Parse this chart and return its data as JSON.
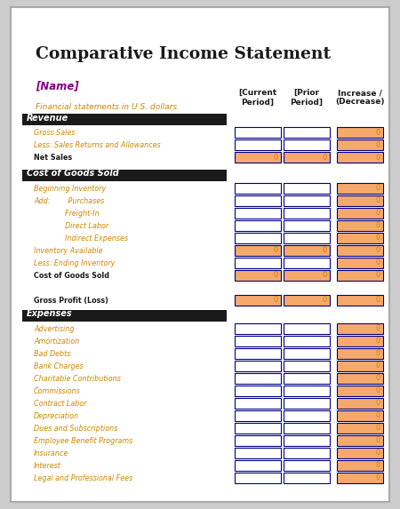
{
  "title": "Comparative Income Statement",
  "name_label": "[Name]",
  "subtitle": "Financial statements in U.S. dollars",
  "col_headers": [
    "[Current\nPeriod]",
    "[Prior\nPeriod]",
    "Increase /\n(Decrease)"
  ],
  "sections": [
    {
      "header": "Revenue",
      "rows": [
        {
          "label": "Gross Sales",
          "indent": 1,
          "type": "input",
          "bold": false
        },
        {
          "label": "Less: Sales Returns and Allowances",
          "indent": 1,
          "type": "input",
          "bold": false
        },
        {
          "label": "Net Sales",
          "indent": 1,
          "type": "total",
          "bold": true
        }
      ]
    },
    {
      "header": "Cost of Goods Sold",
      "rows": [
        {
          "label": "Beginning Inventory",
          "indent": 1,
          "type": "input",
          "bold": false
        },
        {
          "label": "Add:        Purchases",
          "indent": 1,
          "type": "input",
          "bold": false
        },
        {
          "label": "              Freight-In",
          "indent": 1,
          "type": "input",
          "bold": false
        },
        {
          "label": "              Direct Labor",
          "indent": 1,
          "type": "input",
          "bold": false
        },
        {
          "label": "              Indirect Expenses",
          "indent": 1,
          "type": "input",
          "bold": false
        },
        {
          "label": "Inventory Available",
          "indent": 1,
          "type": "subtotal",
          "bold": false
        },
        {
          "label": "Less: Ending Inventory",
          "indent": 1,
          "type": "input",
          "bold": false
        },
        {
          "label": "Cost of Goods Sold",
          "indent": 1,
          "type": "total",
          "bold": true
        }
      ]
    },
    {
      "header": "gross_profit",
      "rows": [
        {
          "label": "Gross Profit (Loss)",
          "indent": 1,
          "type": "bigtotal",
          "bold": true
        }
      ]
    },
    {
      "header": "Expenses",
      "rows": [
        {
          "label": "Advertising",
          "indent": 1,
          "type": "input",
          "bold": false
        },
        {
          "label": "Amortization",
          "indent": 1,
          "type": "input",
          "bold": false
        },
        {
          "label": "Bad Debts",
          "indent": 1,
          "type": "input",
          "bold": false
        },
        {
          "label": "Bank Charges",
          "indent": 1,
          "type": "input",
          "bold": false
        },
        {
          "label": "Charitable Contributions",
          "indent": 1,
          "type": "input",
          "bold": false
        },
        {
          "label": "Commissions",
          "indent": 1,
          "type": "input",
          "bold": false
        },
        {
          "label": "Contract Labor",
          "indent": 1,
          "type": "input",
          "bold": false
        },
        {
          "label": "Depreciation",
          "indent": 1,
          "type": "input",
          "bold": false
        },
        {
          "label": "Dues and Subscriptions",
          "indent": 1,
          "type": "input",
          "bold": false
        },
        {
          "label": "Employee Benefit Programs",
          "indent": 1,
          "type": "input",
          "bold": false
        },
        {
          "label": "Insurance",
          "indent": 1,
          "type": "input",
          "bold": false
        },
        {
          "label": "Interest",
          "indent": 1,
          "type": "input",
          "bold": false
        },
        {
          "label": "Legal and Professional Fees",
          "indent": 1,
          "type": "input",
          "bold": false
        }
      ]
    }
  ],
  "colors": {
    "title": "#1a1a1a",
    "name": "#880088",
    "subtitle": "#CC8800",
    "section_header_bg": "#1a1a1a",
    "section_header_text": "#ffffff",
    "col_header_text": "#1a1a1a",
    "row_label_normal": "#CC8800",
    "row_label_bold": "#1a1a1a",
    "input_box_fill": "#ffffff",
    "input_box_border": "#000088",
    "total_box_fill": "#F5A96B",
    "total_box_border": "#000088",
    "zero_text": "#CC8800",
    "background": "#ffffff",
    "outer_border": "#aaaaaa",
    "page_bg": "#cccccc"
  }
}
